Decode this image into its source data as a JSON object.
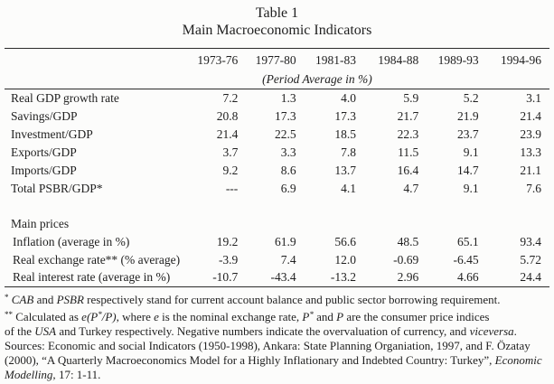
{
  "colors": {
    "background": "#fcfcfb",
    "ink": "#1f1f1f",
    "rule": "#2b2b2b"
  },
  "title": {
    "line1": "Table 1",
    "line2": "Main Macroeconomic Indicators"
  },
  "table": {
    "col_headers": [
      "1973-76",
      "1977-80",
      "1981-83",
      "1984-88",
      "1989-93",
      "1994-96"
    ],
    "subheader": "(Period Average in %)",
    "rows": [
      {
        "label": "Real GDP growth rate",
        "values": [
          "7.2",
          "1.3",
          "4.0",
          "5.9",
          "5.2",
          "3.1"
        ]
      },
      {
        "label": "Savings/GDP",
        "values": [
          "20.8",
          "17.3",
          "17.3",
          "21.7",
          "21.9",
          "21.4"
        ]
      },
      {
        "label": "Investment/GDP",
        "values": [
          "21.4",
          "22.5",
          "18.5",
          "22.3",
          "23.7",
          "23.9"
        ]
      },
      {
        "label": "Exports/GDP",
        "values": [
          "3.7",
          "3.3",
          "7.8",
          "11.5",
          "9.1",
          "13.3"
        ]
      },
      {
        "label": "Imports/GDP",
        "values": [
          "9.2",
          "8.6",
          "13.7",
          "16.4",
          "14.7",
          "21.1"
        ]
      },
      {
        "label": "Total PSBR/GDP*",
        "values": [
          "---",
          "6.9",
          "4.1",
          "4.7",
          "9.1",
          "7.6"
        ]
      },
      {
        "type": "spacer"
      },
      {
        "type": "section",
        "label": "Main prices"
      },
      {
        "label": "Inflation (average in %)",
        "indent": true,
        "values": [
          "19.2",
          "61.9",
          "56.6",
          "48.5",
          "65.1",
          "93.4"
        ]
      },
      {
        "label": "Real exchange rate** (% average)",
        "indent": true,
        "values": [
          "-3.9",
          "7.4",
          "12.0",
          "-0.69",
          "-6.45",
          "5.72"
        ]
      },
      {
        "label": "Real interest rate (average in %)",
        "indent": true,
        "values": [
          "-10.7",
          "-43.4",
          "-13.2",
          "2.96",
          "4.66",
          "24.4"
        ]
      }
    ]
  },
  "footnotes": [
    [
      {
        "t": "*",
        "s": "sup"
      },
      {
        "t": " ",
        "s": ""
      },
      {
        "t": "CAB",
        "s": "i"
      },
      {
        "t": " and ",
        "s": ""
      },
      {
        "t": "PSBR",
        "s": "i"
      },
      {
        "t": " respectively stand for current account balance and public sector borrowing requirement.",
        "s": ""
      }
    ],
    [
      {
        "t": "**",
        "s": "sup"
      },
      {
        "t": " Calculated as ",
        "s": ""
      },
      {
        "t": "e(P",
        "s": "i"
      },
      {
        "t": "*",
        "s": "i-sup"
      },
      {
        "t": "/P)",
        "s": "i"
      },
      {
        "t": ", where ",
        "s": ""
      },
      {
        "t": "e",
        "s": "i"
      },
      {
        "t": " is the nominal exchange rate, ",
        "s": ""
      },
      {
        "t": "P",
        "s": "i"
      },
      {
        "t": "*",
        "s": "i-sup"
      },
      {
        "t": " and ",
        "s": ""
      },
      {
        "t": "P",
        "s": "i"
      },
      {
        "t": " are the consumer price indices",
        "s": ""
      }
    ],
    [
      {
        "t": "of the ",
        "s": ""
      },
      {
        "t": "USA",
        "s": "i"
      },
      {
        "t": " and Turkey respectively. Negative numbers indicate the overvaluation of currency, and ",
        "s": ""
      },
      {
        "t": "viceversa",
        "s": "i"
      },
      {
        "t": ".",
        "s": ""
      }
    ],
    [
      {
        "t": "Sources: Economic and social Indicators (1950-1998), Ankara: State Planning Organiation, 1997, and F. Özatay",
        "s": ""
      }
    ],
    [
      {
        "t": "(2000), “A Quarterly Macroeconomics Model for a Highly Inflationary and Indebted Country: Turkey”, ",
        "s": ""
      },
      {
        "t": "Economic",
        "s": "i"
      }
    ],
    [
      {
        "t": "Modelling,",
        "s": "i"
      },
      {
        "t": " 17: 1-11.",
        "s": ""
      }
    ]
  ]
}
